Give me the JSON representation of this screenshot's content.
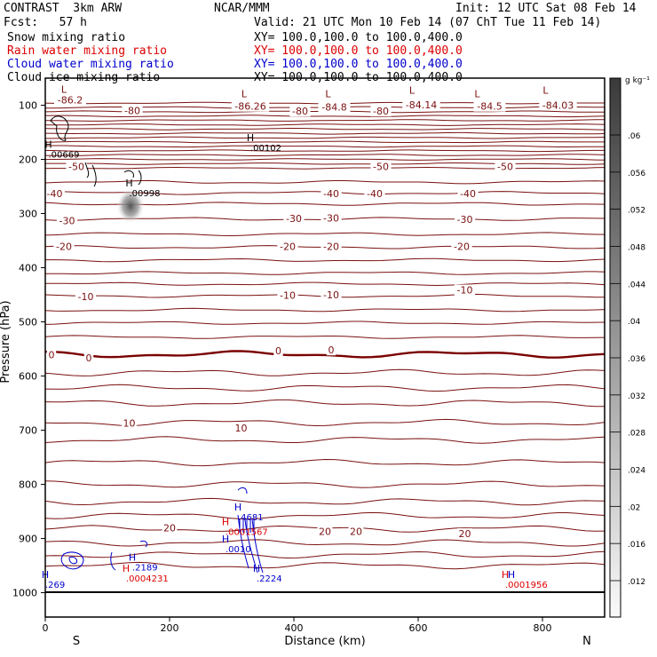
{
  "header": {
    "model": "CONTRAST  3km ARW",
    "center": "NCAR/MMM",
    "init": "Init: 12 UTC Sat 08 Feb 14",
    "fcst": "Fcst:   57 h",
    "valid": "Valid: 21 UTC Mon 10 Feb 14 (07 ChT Tue 11 Feb 14)",
    "fields": [
      {
        "label": "Snow mixing ratio",
        "xy": "XY= 100.0,100.0 to 100.0,400.0",
        "color": "#000000"
      },
      {
        "label": "Rain water mixing ratio",
        "xy": "XY= 100.0,100.0 to 100.0,400.0",
        "color": "#dd0000"
      },
      {
        "label": "Cloud water mixing ratio",
        "xy": "XY= 100.0,100.0 to 100.0,400.0",
        "color": "#0000cc"
      },
      {
        "label": "Cloud ice mixing ratio",
        "xy": "XY= 100.0,100.0 to 100.0,400.0",
        "color": "#000000"
      }
    ]
  },
  "chart_data": {
    "type": "contour",
    "xlabel": "Distance (km)",
    "ylabel": "Pressure (hPa)",
    "xlim": [
      0,
      900
    ],
    "ylim": [
      1000,
      50
    ],
    "xticks": [
      "0",
      "200",
      "400",
      "600",
      "800"
    ],
    "yticks": [
      "100",
      "200",
      "300",
      "400",
      "500",
      "600",
      "700",
      "800",
      "900",
      "1000"
    ],
    "x_end_labels": {
      "left": "S",
      "right": "N"
    },
    "colorbar": {
      "unit": "g kg⁻¹",
      "levels": [
        ".012",
        ".016",
        ".02",
        ".024",
        ".028",
        ".032",
        ".036",
        ".04",
        ".044",
        ".048",
        ".052",
        ".056",
        ".06"
      ]
    },
    "temperature_colors": {
      "isotherm": "#7a1010",
      "zero": "#7a0000"
    },
    "temperature_labels": [
      {
        "text": "-86.2",
        "x": 40,
        "p": 90
      },
      {
        "text": "-80",
        "x": 140,
        "p": 110
      },
      {
        "text": "-86.26",
        "x": 330,
        "p": 102
      },
      {
        "text": "-80",
        "x": 410,
        "p": 111
      },
      {
        "text": "-84.8",
        "x": 465,
        "p": 103
      },
      {
        "text": "-80",
        "x": 540,
        "p": 111
      },
      {
        "text": "-84.14",
        "x": 605,
        "p": 99
      },
      {
        "text": "-84.5",
        "x": 715,
        "p": 102
      },
      {
        "text": "-84.03",
        "x": 825,
        "p": 100
      },
      {
        "text": "-50",
        "x": 50,
        "p": 213
      },
      {
        "text": "-50",
        "x": 540,
        "p": 213
      },
      {
        "text": "-50",
        "x": 740,
        "p": 213
      },
      {
        "text": "-40",
        "x": 15,
        "p": 263
      },
      {
        "text": "-40",
        "x": 460,
        "p": 263
      },
      {
        "text": "-40",
        "x": 530,
        "p": 263
      },
      {
        "text": "-40",
        "x": 680,
        "p": 263
      },
      {
        "text": "-30",
        "x": 35,
        "p": 313
      },
      {
        "text": "-30",
        "x": 400,
        "p": 309
      },
      {
        "text": "-30",
        "x": 460,
        "p": 308
      },
      {
        "text": "-30",
        "x": 675,
        "p": 311
      },
      {
        "text": "-20",
        "x": 30,
        "p": 361
      },
      {
        "text": "-20",
        "x": 390,
        "p": 361
      },
      {
        "text": "-20",
        "x": 460,
        "p": 361
      },
      {
        "text": "-20",
        "x": 670,
        "p": 361
      },
      {
        "text": "-10",
        "x": 65,
        "p": 453
      },
      {
        "text": "-10",
        "x": 390,
        "p": 451
      },
      {
        "text": "-10",
        "x": 460,
        "p": 450
      },
      {
        "text": "-10",
        "x": 675,
        "p": 441
      },
      {
        "text": "0",
        "x": 10,
        "p": 561
      },
      {
        "text": "0",
        "x": 70,
        "p": 566
      },
      {
        "text": "0",
        "x": 375,
        "p": 553
      },
      {
        "text": "0",
        "x": 460,
        "p": 552
      },
      {
        "text": "10",
        "x": 135,
        "p": 687
      },
      {
        "text": "10",
        "x": 315,
        "p": 696
      },
      {
        "text": "20",
        "x": 200,
        "p": 880
      },
      {
        "text": "20",
        "x": 450,
        "p": 887
      },
      {
        "text": "20",
        "x": 500,
        "p": 887
      },
      {
        "text": "20",
        "x": 675,
        "p": 891
      }
    ],
    "extrema_labels": [
      {
        "mark": "L",
        "x": 30,
        "p": 77,
        "color": "#7a1010"
      },
      {
        "mark": "L",
        "x": 320,
        "p": 85,
        "color": "#7a1010"
      },
      {
        "mark": "L",
        "x": 455,
        "p": 85,
        "color": "#7a1010"
      },
      {
        "mark": "L",
        "x": 590,
        "p": 79,
        "color": "#7a1010"
      },
      {
        "mark": "L",
        "x": 695,
        "p": 85,
        "color": "#7a1010"
      },
      {
        "mark": "L",
        "x": 805,
        "p": 79,
        "color": "#7a1010"
      },
      {
        "mark": "H",
        "x": 330,
        "p": 166,
        "color": "#000000",
        "value": ".00102"
      },
      {
        "mark": "H",
        "x": 5,
        "p": 179,
        "color": "#000000",
        "value": ".00669"
      },
      {
        "mark": "H",
        "x": 135,
        "p": 250,
        "color": "#000000",
        "value": ".00998"
      },
      {
        "mark": "H",
        "x": 310,
        "p": 848,
        "color": "#0000cc",
        "value": ".4681"
      },
      {
        "mark": "H",
        "x": 290,
        "p": 875,
        "color": "#dd0000",
        "value": ".0001567"
      },
      {
        "mark": "H",
        "x": 290,
        "p": 907,
        "color": "#0000cc",
        "value": ".0010"
      },
      {
        "mark": "H",
        "x": 140,
        "p": 941,
        "color": "#0000cc",
        "value": ".2189"
      },
      {
        "mark": "H",
        "x": 130,
        "p": 961,
        "color": "#dd0000",
        "value": ".0004231"
      },
      {
        "mark": "H",
        "x": 340,
        "p": 961,
        "color": "#0000cc",
        "value": ".2224"
      },
      {
        "mark": "H",
        "x": 0,
        "p": 973,
        "color": "#0000cc",
        "value": ".269"
      },
      {
        "mark": "H",
        "x": 740,
        "p": 973,
        "color": "#dd0000",
        "value": ".0001956"
      },
      {
        "mark": "H",
        "x": 750,
        "p": 973,
        "color": "#0000cc",
        "value": ""
      }
    ]
  }
}
